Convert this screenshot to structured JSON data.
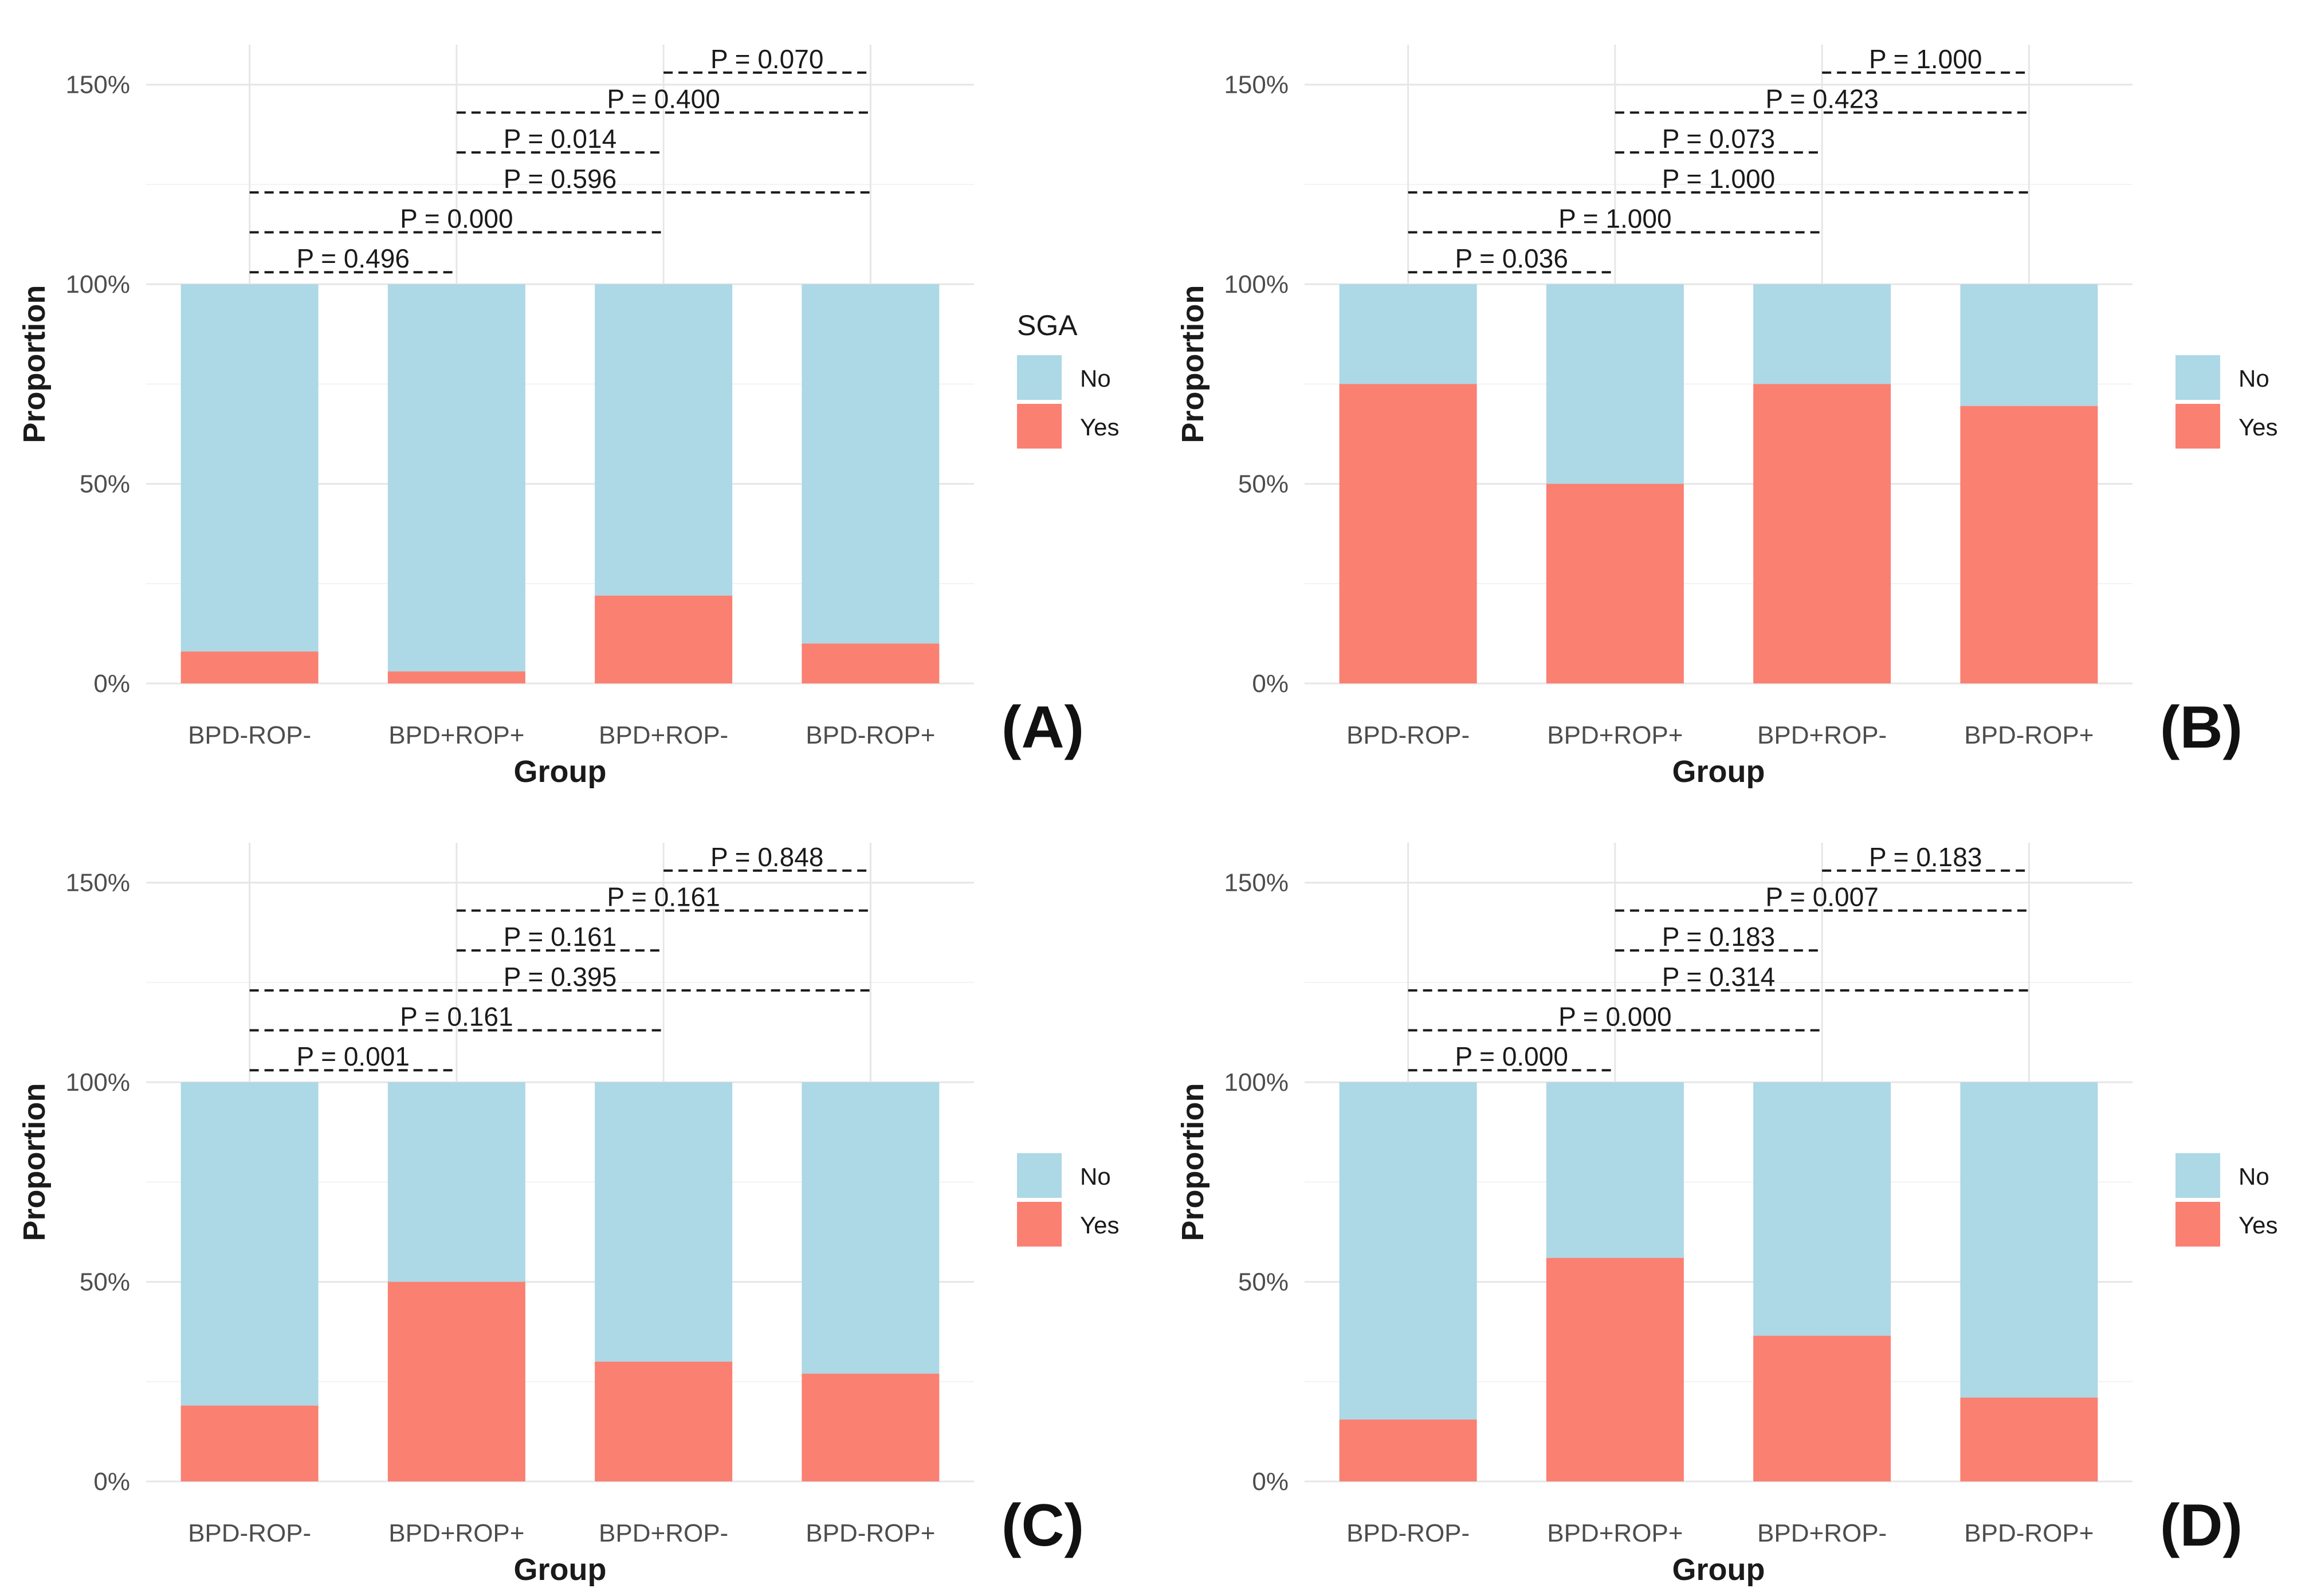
{
  "colors": {
    "no": "#ADD8E6",
    "yes": "#FA8072",
    "grid": "#e6e6e6",
    "text": "#4d4d4d",
    "dark": "#1a1a1a"
  },
  "chart_data": [
    {
      "type": "bar",
      "panel_label": "(A)",
      "xlabel": "Group",
      "ylabel": "Proportion",
      "ylim": [
        0,
        160
      ],
      "yticks": [
        "0%",
        "50%",
        "100%",
        "150%"
      ],
      "categories": [
        "BPD-ROP-",
        "BPD+ROP+",
        "BPD+ROP-",
        "BPD-ROP+"
      ],
      "stacked": true,
      "legend_title": "SGA",
      "legend_placement": "right",
      "series": [
        {
          "name": "No",
          "values": [
            92,
            97,
            78,
            90
          ]
        },
        {
          "name": "Yes",
          "values": [
            8,
            3,
            22,
            10
          ]
        }
      ],
      "comparisons": [
        {
          "label": "P = 0.496",
          "from": "BPD-ROP-",
          "to": "BPD+ROP+"
        },
        {
          "label": "P = 0.000",
          "from": "BPD-ROP-",
          "to": "BPD+ROP-"
        },
        {
          "label": "P = 0.596",
          "from": "BPD-ROP-",
          "to": "BPD-ROP+"
        },
        {
          "label": "P = 0.014",
          "from": "BPD+ROP+",
          "to": "BPD+ROP-"
        },
        {
          "label": "P = 0.400",
          "from": "BPD+ROP+",
          "to": "BPD-ROP+"
        },
        {
          "label": "P = 0.070",
          "from": "BPD+ROP-",
          "to": "BPD-ROP+"
        }
      ]
    },
    {
      "type": "bar",
      "panel_label": "(B)",
      "xlabel": "Group",
      "ylabel": "Proportion",
      "ylim": [
        0,
        160
      ],
      "yticks": [
        "0%",
        "50%",
        "100%",
        "150%"
      ],
      "categories": [
        "BPD-ROP-",
        "BPD+ROP+",
        "BPD+ROP-",
        "BPD-ROP+"
      ],
      "stacked": true,
      "legend_title": "",
      "legend_placement": "right",
      "series": [
        {
          "name": "No",
          "values": [
            25,
            50,
            25,
            30.5
          ]
        },
        {
          "name": "Yes",
          "values": [
            75,
            50,
            75,
            69.5
          ]
        }
      ],
      "comparisons": [
        {
          "label": "P = 0.036",
          "from": "BPD-ROP-",
          "to": "BPD+ROP+"
        },
        {
          "label": "P = 1.000",
          "from": "BPD-ROP-",
          "to": "BPD+ROP-"
        },
        {
          "label": "P = 1.000",
          "from": "BPD-ROP-",
          "to": "BPD-ROP+"
        },
        {
          "label": "P = 0.073",
          "from": "BPD+ROP+",
          "to": "BPD+ROP-"
        },
        {
          "label": "P = 0.423",
          "from": "BPD+ROP+",
          "to": "BPD-ROP+"
        },
        {
          "label": "P = 1.000",
          "from": "BPD+ROP-",
          "to": "BPD-ROP+"
        }
      ]
    },
    {
      "type": "bar",
      "panel_label": "(C)",
      "xlabel": "Group",
      "ylabel": "Proportion",
      "ylim": [
        0,
        160
      ],
      "yticks": [
        "0%",
        "50%",
        "100%",
        "150%"
      ],
      "categories": [
        "BPD-ROP-",
        "BPD+ROP+",
        "BPD+ROP-",
        "BPD-ROP+"
      ],
      "stacked": true,
      "legend_title": "",
      "legend_placement": "right",
      "series": [
        {
          "name": "No",
          "values": [
            81,
            50,
            70,
            73
          ]
        },
        {
          "name": "Yes",
          "values": [
            19,
            50,
            30,
            27
          ]
        }
      ],
      "comparisons": [
        {
          "label": "P = 0.001",
          "from": "BPD-ROP-",
          "to": "BPD+ROP+"
        },
        {
          "label": "P = 0.161",
          "from": "BPD-ROP-",
          "to": "BPD+ROP-"
        },
        {
          "label": "P = 0.395",
          "from": "BPD-ROP-",
          "to": "BPD-ROP+"
        },
        {
          "label": "P = 0.161",
          "from": "BPD+ROP+",
          "to": "BPD+ROP-"
        },
        {
          "label": "P = 0.161",
          "from": "BPD+ROP+",
          "to": "BPD-ROP+"
        },
        {
          "label": "P = 0.848",
          "from": "BPD+ROP-",
          "to": "BPD-ROP+"
        }
      ]
    },
    {
      "type": "bar",
      "panel_label": "(D)",
      "xlabel": "Group",
      "ylabel": "Proportion",
      "ylim": [
        0,
        160
      ],
      "yticks": [
        "0%",
        "50%",
        "100%",
        "150%"
      ],
      "categories": [
        "BPD-ROP-",
        "BPD+ROP+",
        "BPD+ROP-",
        "BPD-ROP+"
      ],
      "stacked": true,
      "legend_title": "",
      "legend_placement": "right",
      "series": [
        {
          "name": "No",
          "values": [
            84.5,
            44,
            63.5,
            79
          ]
        },
        {
          "name": "Yes",
          "values": [
            15.5,
            56,
            36.5,
            21
          ]
        }
      ],
      "comparisons": [
        {
          "label": "P = 0.000",
          "from": "BPD-ROP-",
          "to": "BPD+ROP+"
        },
        {
          "label": "P = 0.000",
          "from": "BPD-ROP-",
          "to": "BPD+ROP-"
        },
        {
          "label": "P = 0.314",
          "from": "BPD-ROP-",
          "to": "BPD-ROP+"
        },
        {
          "label": "P = 0.183",
          "from": "BPD+ROP+",
          "to": "BPD+ROP-"
        },
        {
          "label": "P = 0.007",
          "from": "BPD+ROP+",
          "to": "BPD-ROP+"
        },
        {
          "label": "P = 0.183",
          "from": "BPD+ROP-",
          "to": "BPD-ROP+"
        }
      ]
    }
  ]
}
